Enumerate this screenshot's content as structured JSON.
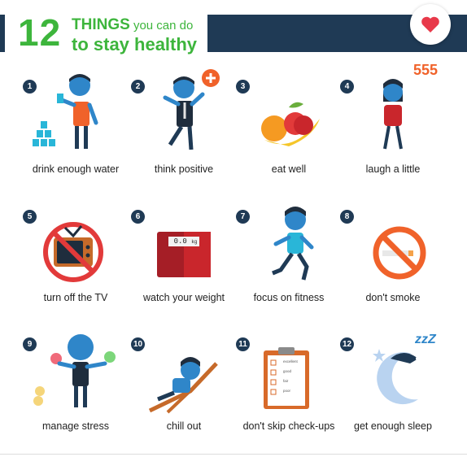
{
  "header": {
    "number": "12",
    "line1_bold": "THINGS",
    "line1_rest": " you can do",
    "line2": "to stay healthy"
  },
  "favorite": {
    "icon": "heart-icon",
    "color": "#e8394a"
  },
  "colors": {
    "green": "#3db53c",
    "navy": "#1f3a55",
    "blue": "#2f86c9"
  },
  "tips": [
    {
      "num": "1",
      "label": "drink enough water"
    },
    {
      "num": "2",
      "label": "think positive"
    },
    {
      "num": "3",
      "label": "eat well"
    },
    {
      "num": "4",
      "label": "laugh a little"
    },
    {
      "num": "5",
      "label": "turn off the TV"
    },
    {
      "num": "6",
      "label": "watch your weight"
    },
    {
      "num": "7",
      "label": "focus on fitness"
    },
    {
      "num": "8",
      "label": "don't smoke"
    },
    {
      "num": "9",
      "label": "manage stress"
    },
    {
      "num": "10",
      "label": "chill out"
    },
    {
      "num": "11",
      "label": "don't skip check-ups"
    },
    {
      "num": "12",
      "label": "get enough sleep"
    }
  ],
  "scale_display": "0.0",
  "scale_unit": "kg",
  "laugh_text": "555",
  "sleep_text": "zzZ",
  "checklist": [
    "excellent",
    "good",
    "fair",
    "poor"
  ]
}
